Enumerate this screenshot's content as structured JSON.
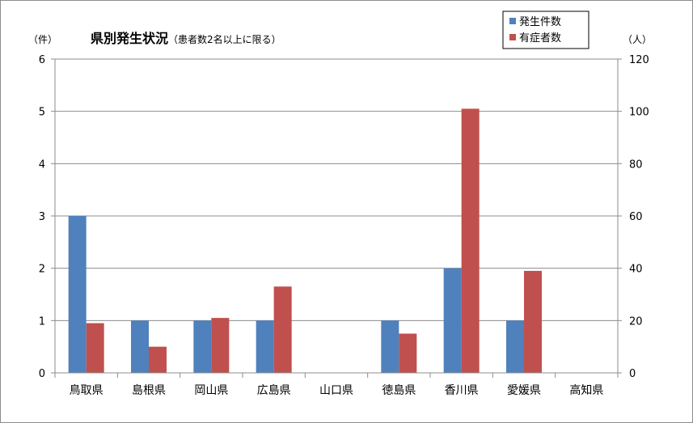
{
  "chart_data": {
    "type": "bar",
    "title": "県別発生状況",
    "subtitle": "（患者数2名以上に限る）",
    "categories": [
      "鳥取県",
      "島根県",
      "岡山県",
      "広島県",
      "山口県",
      "徳島県",
      "香川県",
      "愛媛県",
      "高知県"
    ],
    "series": [
      {
        "name": "発生件数",
        "axis": "left",
        "color": "#4f81bd",
        "values": [
          3,
          1,
          1,
          1,
          0,
          1,
          2,
          1,
          0
        ]
      },
      {
        "name": "有症者数",
        "axis": "right",
        "color": "#c0504d",
        "values": [
          19,
          10,
          21,
          33,
          0,
          15,
          101,
          39,
          0
        ]
      }
    ],
    "y_left": {
      "unit": "（件）",
      "range": [
        0,
        6
      ],
      "ticks": [
        "0",
        "1",
        "2",
        "3",
        "4",
        "5",
        "6"
      ]
    },
    "y_right": {
      "unit": "（人）",
      "range": [
        0,
        120
      ],
      "ticks": [
        "0",
        "20",
        "40",
        "60",
        "80",
        "100",
        "120"
      ]
    },
    "grid": true,
    "legend_position": "top-right"
  }
}
